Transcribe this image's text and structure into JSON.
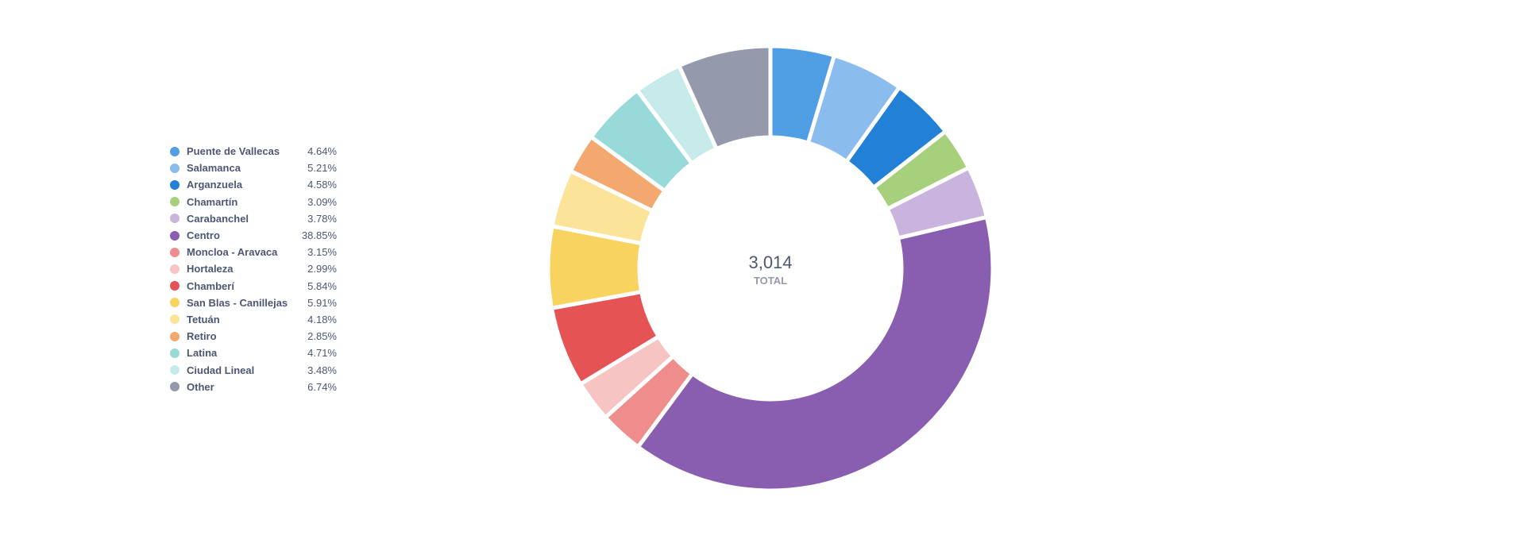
{
  "chart_data": {
    "type": "pie",
    "variant": "donut",
    "total": {
      "value": "3,014",
      "label": "TOTAL"
    },
    "slices": [
      {
        "label": "Puente de Vallecas",
        "percent_text": "4.64%",
        "value": 4.64,
        "color": "#509ee3"
      },
      {
        "label": "Salamanca",
        "percent_text": "5.21%",
        "value": 5.21,
        "color": "#8bbcee"
      },
      {
        "label": "Arganzuela",
        "percent_text": "4.58%",
        "value": 4.58,
        "color": "#2281d6"
      },
      {
        "label": "Chamartín",
        "percent_text": "3.09%",
        "value": 3.09,
        "color": "#a7d07c"
      },
      {
        "label": "Carabanchel",
        "percent_text": "3.78%",
        "value": 3.78,
        "color": "#c9b4dd"
      },
      {
        "label": "Centro",
        "percent_text": "38.85%",
        "value": 38.85,
        "color": "#895eb1"
      },
      {
        "label": "Moncloa - Aravaca",
        "percent_text": "3.15%",
        "value": 3.15,
        "color": "#ef8c8c"
      },
      {
        "label": "Hortaleza",
        "percent_text": "2.99%",
        "value": 2.99,
        "color": "#f7c4c4"
      },
      {
        "label": "Chamberí",
        "percent_text": "5.84%",
        "value": 5.84,
        "color": "#e55355"
      },
      {
        "label": "San Blas - Canillejas",
        "percent_text": "5.91%",
        "value": 5.91,
        "color": "#f8d35f"
      },
      {
        "label": "Tetuán",
        "percent_text": "4.18%",
        "value": 4.18,
        "color": "#fbe499"
      },
      {
        "label": "Retiro",
        "percent_text": "2.85%",
        "value": 2.85,
        "color": "#f2a86f"
      },
      {
        "label": "Latina",
        "percent_text": "4.71%",
        "value": 4.71,
        "color": "#98d9d9"
      },
      {
        "label": "Ciudad Lineal",
        "percent_text": "3.48%",
        "value": 3.48,
        "color": "#c7eaea"
      },
      {
        "label": "Other",
        "percent_text": "6.74%",
        "value": 6.74,
        "color": "#949aab"
      }
    ]
  }
}
